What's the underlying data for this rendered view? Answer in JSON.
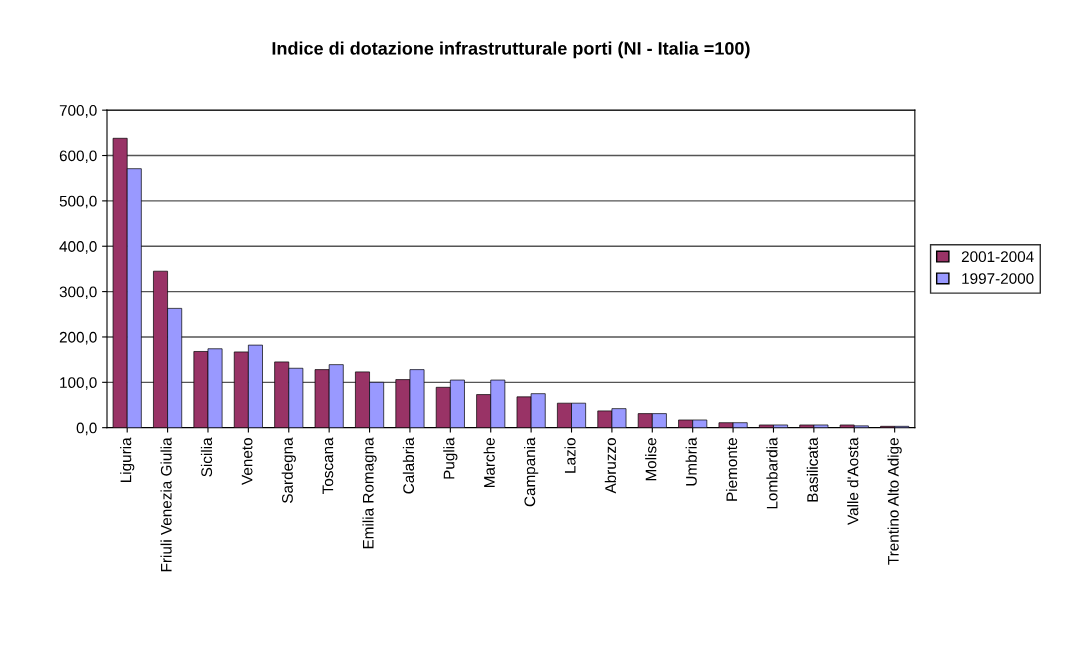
{
  "chart_data": {
    "type": "bar",
    "title": "Indice di dotazione infrastrutturale porti (NI - Italia =100)",
    "categories": [
      "Liguria",
      "Friuli Venezia Giulia",
      "Sicilia",
      "Veneto",
      "Sardegna",
      "Toscana",
      "Emilia Romagna",
      "Calabria",
      "Puglia",
      "Marche",
      "Campania",
      "Lazio",
      "Abruzzo",
      "Molise",
      "Umbria",
      "Piemonte",
      "Lombardia",
      "Basilicata",
      "Valle d'Aosta",
      "Trentino Alto Adige"
    ],
    "series": [
      {
        "name": "2001-2004",
        "color": "#993366",
        "values": [
          638,
          345,
          168,
          167,
          145,
          128,
          123,
          106,
          89,
          73,
          68,
          54,
          37,
          31,
          17,
          11,
          6,
          6,
          6,
          3
        ]
      },
      {
        "name": "1997-2000",
        "color": "#9999ff",
        "values": [
          571,
          263,
          174,
          182,
          131,
          139,
          100,
          128,
          105,
          105,
          75,
          54,
          42,
          31,
          17,
          11,
          6,
          6,
          4,
          3
        ]
      }
    ],
    "ylim": [
      0,
      700
    ],
    "yticks": [
      {
        "value": 0,
        "label": "0,0"
      },
      {
        "value": 100,
        "label": "100,0"
      },
      {
        "value": 200,
        "label": "200,0"
      },
      {
        "value": 300,
        "label": "300,0"
      },
      {
        "value": 400,
        "label": "400,0"
      },
      {
        "value": 500,
        "label": "500,0"
      },
      {
        "value": 600,
        "label": "600,0"
      },
      {
        "value": 700,
        "label": "700,0"
      }
    ],
    "grid": "y",
    "legend": "right"
  }
}
